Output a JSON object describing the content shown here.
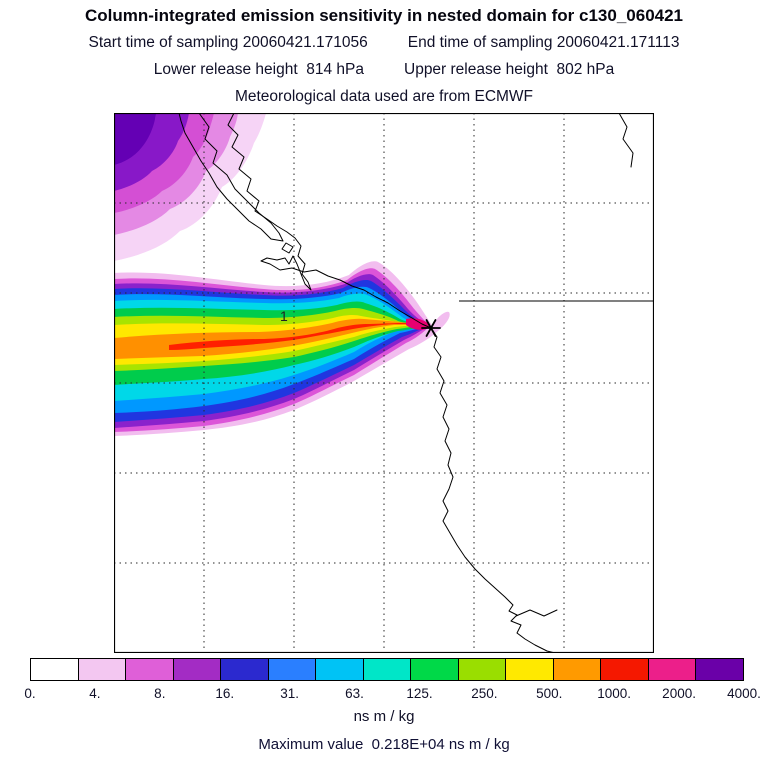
{
  "header": {
    "title": "Column-integrated emission sensitivity in nested domain for c130_060421",
    "start_time": "Start time of sampling 20060421.171056",
    "end_time": "End time of sampling 20060421.171113",
    "lower_release": "Lower release height  814 hPa",
    "upper_release": "Upper release height  802 hPa",
    "met_source": "Meteorological data used are from ECMWF"
  },
  "map": {
    "release_point_label": "1"
  },
  "chart_data": {
    "type": "heatmap",
    "title": "Column-integrated emission sensitivity in nested domain for c130_060421",
    "subtitle": "Meteorological data used are from ECMWF",
    "units": "ns m / kg",
    "colorbar_tick_labels": [
      "0.",
      "4.",
      "8.",
      "16.",
      "31.",
      "63.",
      "125.",
      "250.",
      "500.",
      "1000.",
      "2000.",
      "4000."
    ],
    "colorbar_levels": [
      0,
      4,
      8,
      16,
      31,
      63,
      125,
      250,
      500,
      1000,
      2000,
      4000
    ],
    "colorbar_colors": [
      "#ffffff",
      "#f3c7f1",
      "#df5fd8",
      "#a32cc4",
      "#2b29cf",
      "#2a7fff",
      "#00c3f5",
      "#00e6c8",
      "#00d948",
      "#9ade00",
      "#ffe900",
      "#ff9a00",
      "#f51800",
      "#ec1f8a",
      "#6a00a8"
    ],
    "max_value_label": "Maximum value  0.218E+04 ns m / kg",
    "max_value": "0.218E+04",
    "sampling_start": "20060421.171056",
    "sampling_end": "20060421.171113",
    "lower_release_height_hPa": 814,
    "upper_release_height_hPa": 802,
    "release_points": [
      {
        "id": "1"
      }
    ],
    "grid": true,
    "legend_position": "bottom",
    "description": "Column-integrated emission sensitivity plume over the Pacific Northwest coast, extending westward over the ocean from a sampling point on the coast; secondary low-value lobe in the northwest corner of the nested domain."
  },
  "footer": {
    "units": "ns m / kg",
    "max_line": "Maximum value  0.218E+04 ns m / kg"
  }
}
